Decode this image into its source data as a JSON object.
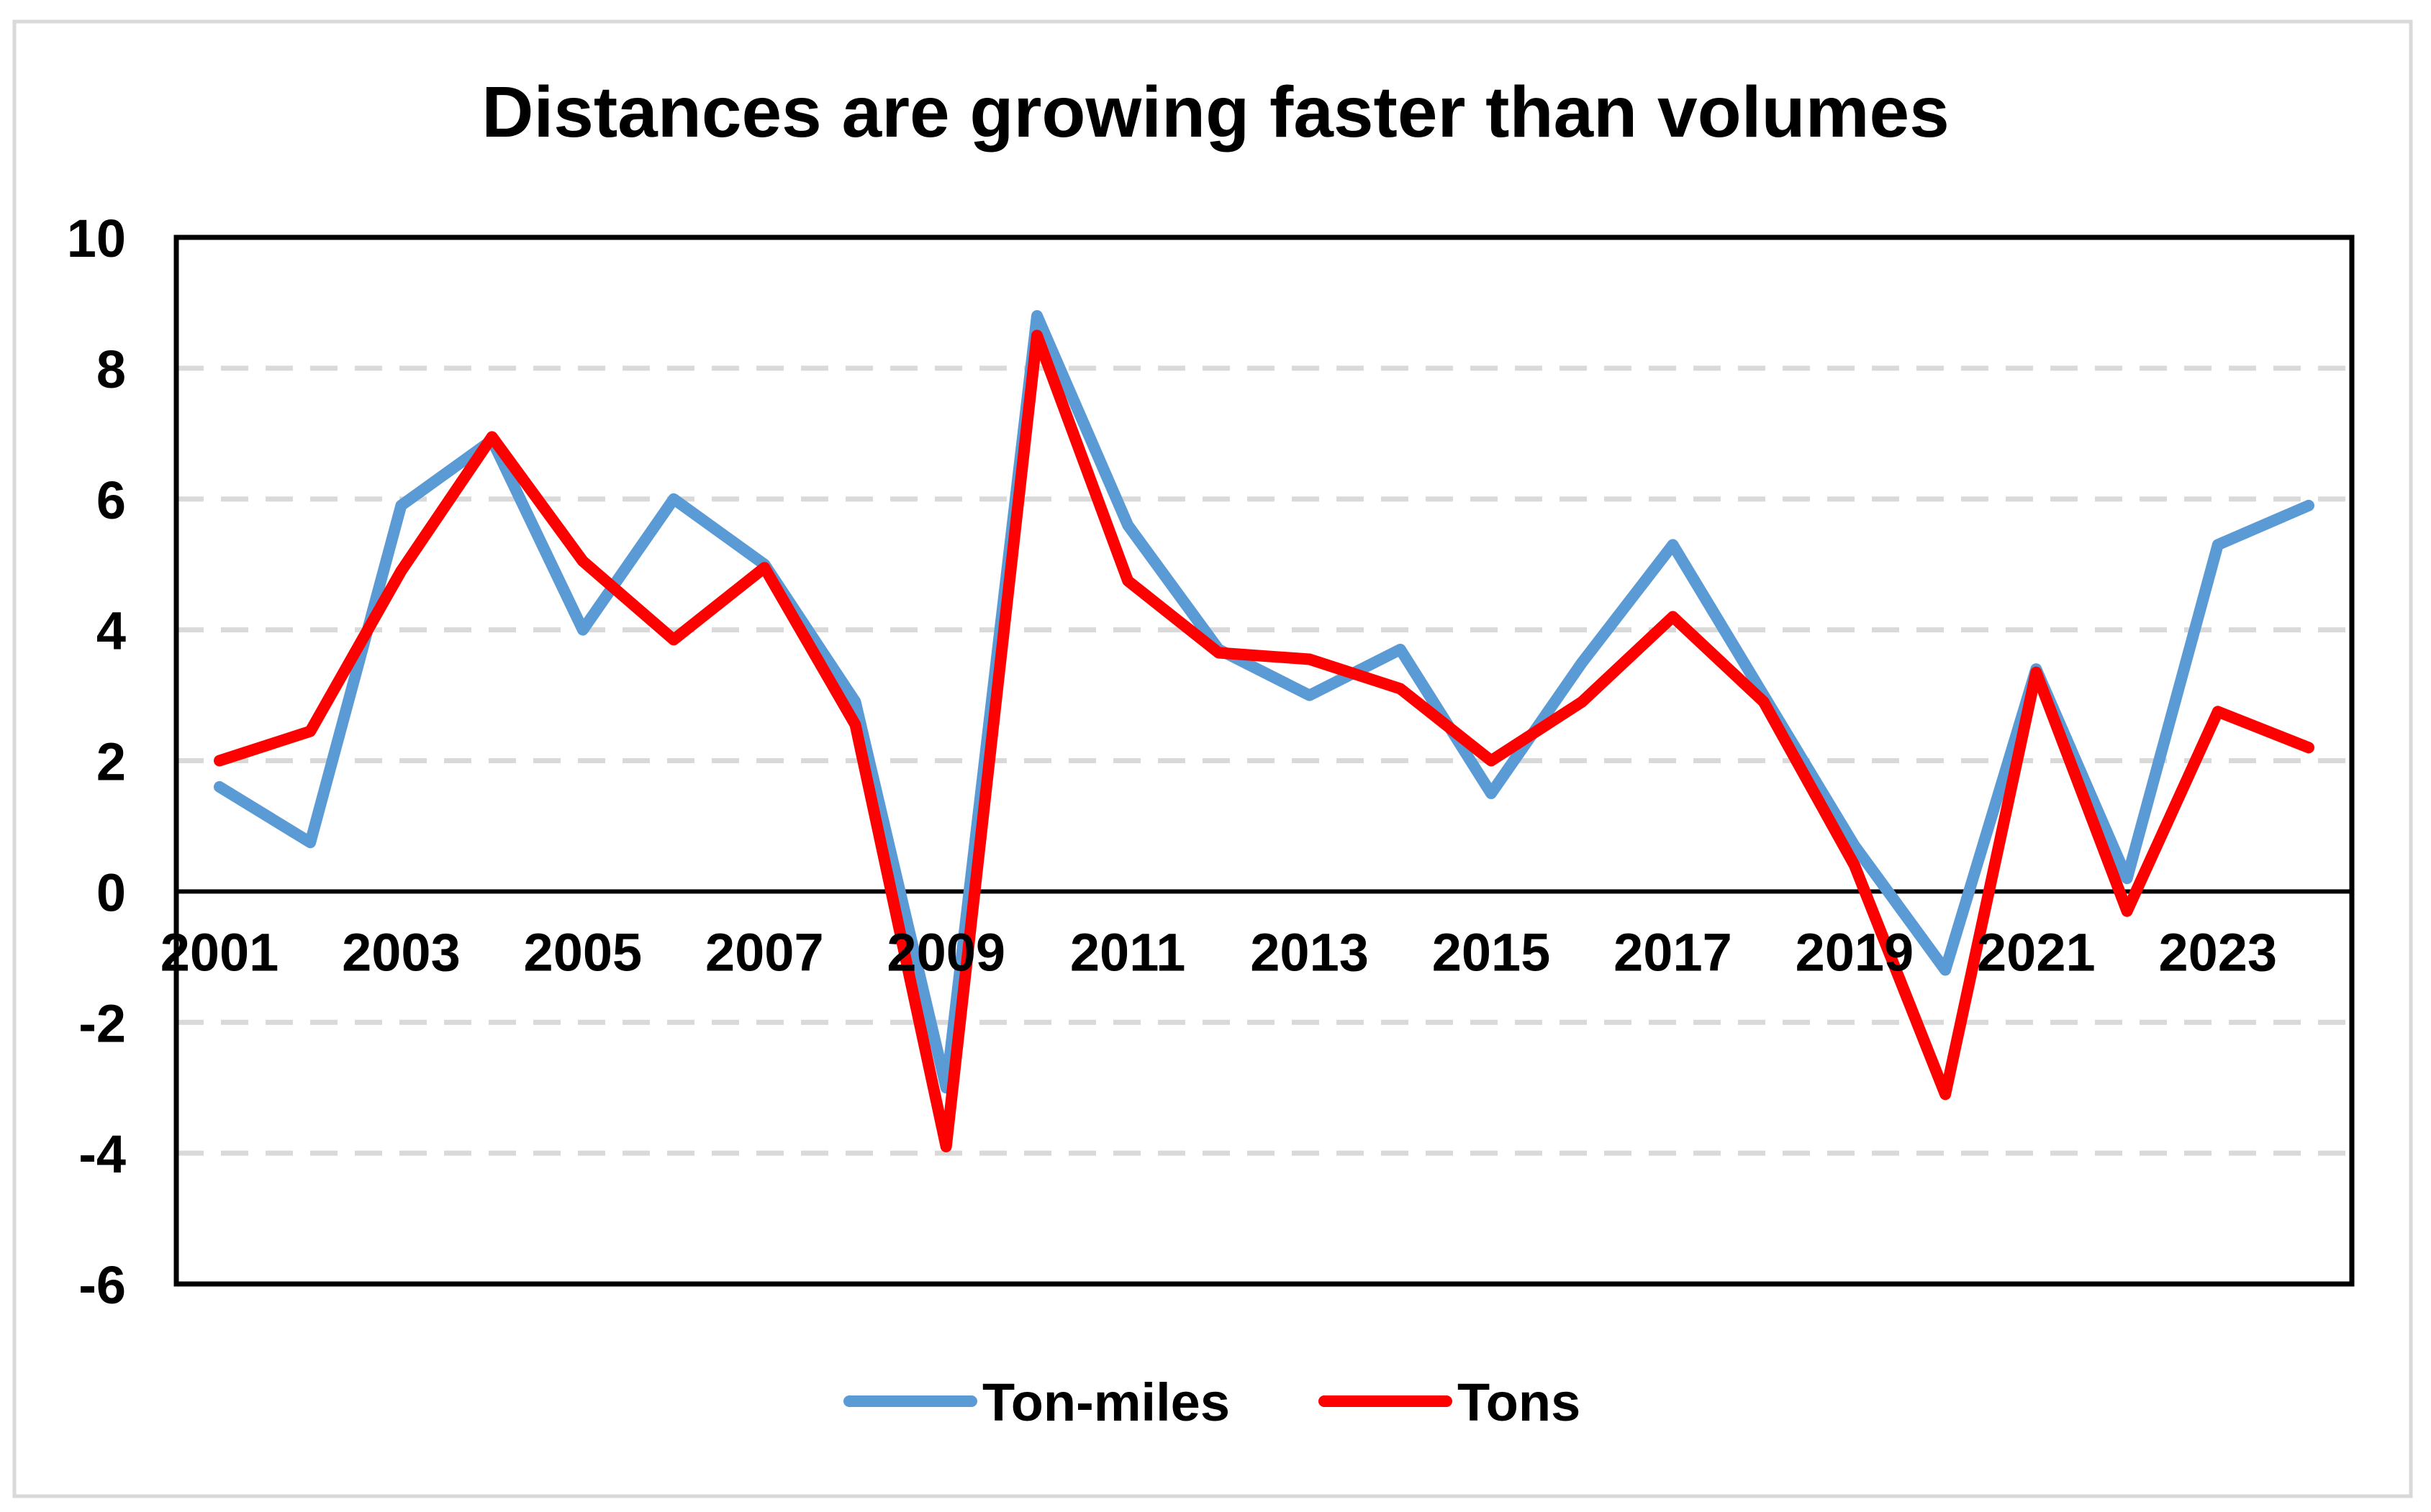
{
  "chart_data": {
    "type": "line",
    "title": "Distances are growing faster than volumes",
    "xlabel": "",
    "ylabel": "",
    "ylim": [
      -6,
      10
    ],
    "yticks": [
      -6,
      -4,
      -2,
      0,
      2,
      4,
      6,
      8,
      10
    ],
    "yticks_labels": [
      "-6",
      "-4",
      "-2",
      "0",
      "2",
      "4",
      "6",
      "8",
      "10"
    ],
    "x": [
      2001,
      2002,
      2003,
      2004,
      2005,
      2006,
      2007,
      2008,
      2009,
      2010,
      2011,
      2012,
      2013,
      2014,
      2015,
      2016,
      2017,
      2018,
      2019,
      2020,
      2021,
      2022,
      2023,
      2024
    ],
    "xtick_labels": [
      "2001",
      "2003",
      "2005",
      "2007",
      "2009",
      "2011",
      "2013",
      "2015",
      "2017",
      "2019",
      "2021",
      "2023"
    ],
    "xtick_values": [
      2001,
      2003,
      2005,
      2007,
      2009,
      2011,
      2013,
      2015,
      2017,
      2019,
      2021,
      2023
    ],
    "grid": true,
    "legend_position": "bottom-center",
    "series": [
      {
        "name": "Ton-miles",
        "color": "#5B9BD5",
        "values": [
          1.6,
          0.75,
          5.9,
          6.9,
          4.0,
          6.0,
          5.0,
          2.9,
          -3.0,
          8.8,
          5.6,
          3.7,
          3.0,
          3.7,
          1.5,
          3.5,
          5.3,
          3.0,
          0.7,
          -1.2,
          3.4,
          0.2,
          5.3,
          5.9
        ]
      },
      {
        "name": "Tons",
        "color": "#FF0000",
        "values": [
          2.0,
          2.45,
          4.9,
          6.95,
          5.05,
          3.85,
          4.95,
          2.55,
          -3.9,
          8.5,
          4.75,
          3.65,
          3.55,
          3.1,
          2.0,
          2.9,
          4.2,
          2.9,
          0.4,
          -3.1,
          3.35,
          -0.3,
          2.75,
          2.2
        ]
      }
    ]
  }
}
